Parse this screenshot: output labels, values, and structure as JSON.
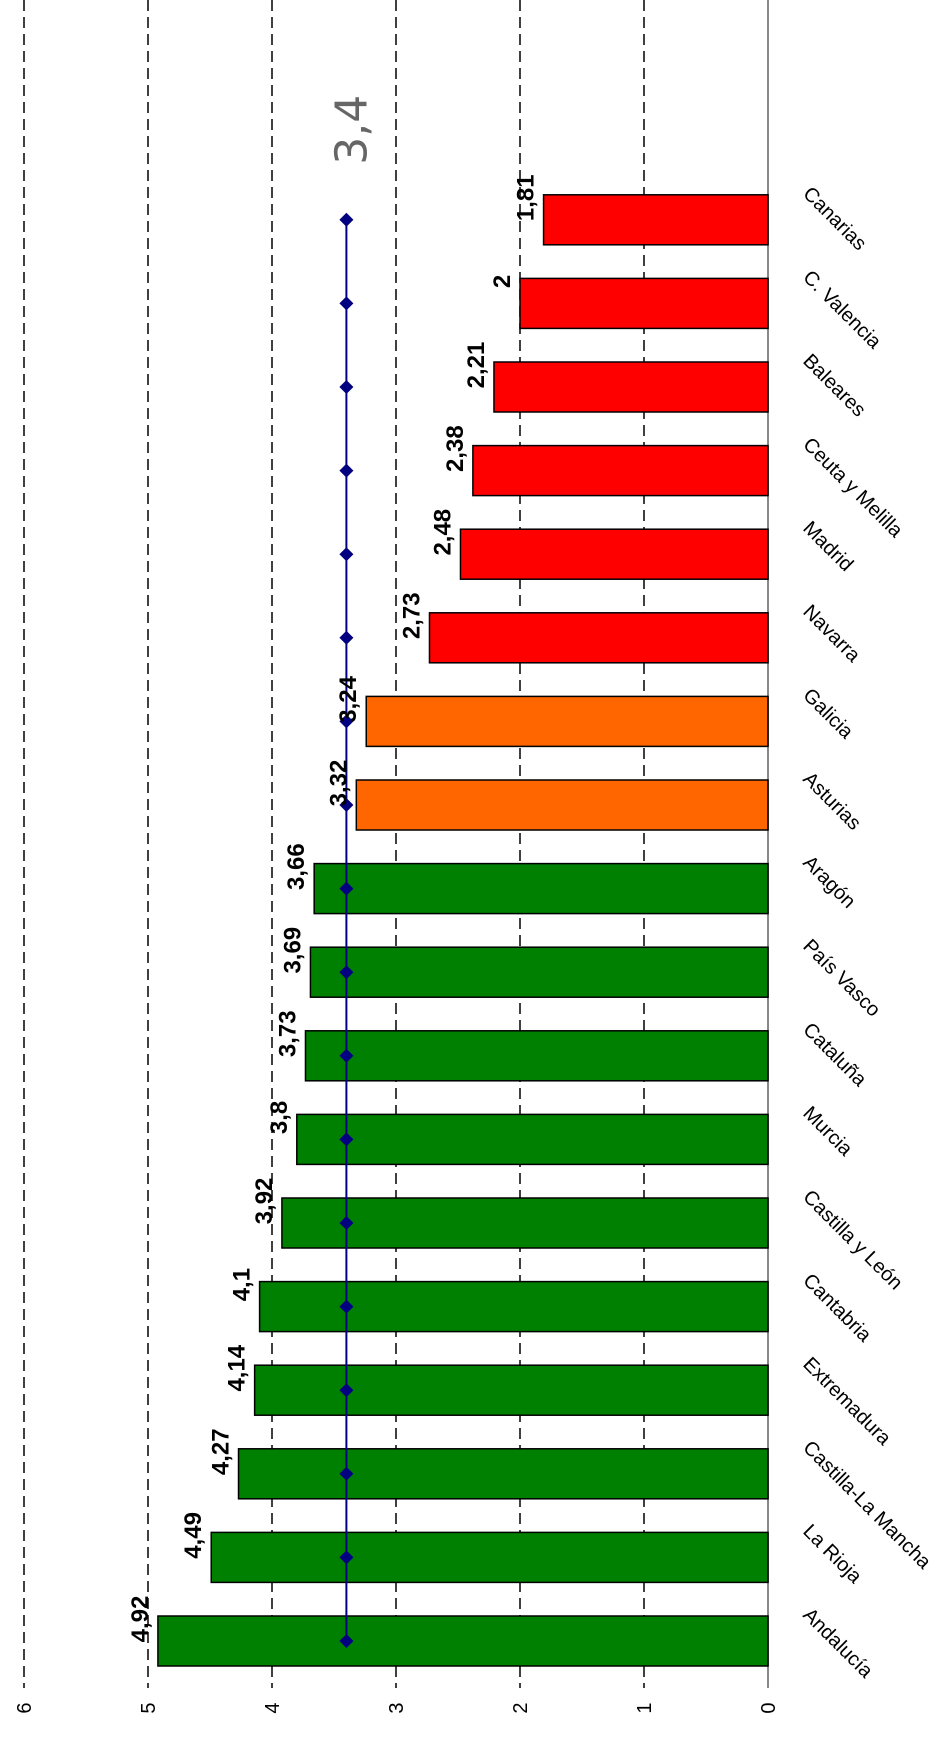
{
  "chart_data": {
    "type": "bar",
    "orientation": "rotated",
    "categories": [
      "Andalucía",
      "La Rioja",
      "Castilla-La Mancha",
      "Extremadura",
      "Cantabria",
      "Castilla y León",
      "Murcia",
      "Cataluña",
      "País Vasco",
      "Aragón",
      "Asturias",
      "Galicia",
      "Navarra",
      "Madrid",
      "Ceuta y Melilla",
      "Baleares",
      "C. Valencia",
      "Canarias"
    ],
    "values": [
      4.92,
      4.49,
      4.27,
      4.14,
      4.1,
      3.92,
      3.8,
      3.73,
      3.69,
      3.66,
      3.32,
      3.24,
      2.73,
      2.48,
      2.38,
      2.21,
      2,
      1.81
    ],
    "data_labels": [
      "4,92",
      "4,49",
      "4,27",
      "4,14",
      "4,1",
      "3,92",
      "3,8",
      "3,73",
      "3,69",
      "3,66",
      "3,32",
      "3,24",
      "2,73",
      "2,48",
      "2,38",
      "2,21",
      "2",
      "1,81"
    ],
    "bar_colors": [
      "#008000",
      "#008000",
      "#008000",
      "#008000",
      "#008000",
      "#008000",
      "#008000",
      "#008000",
      "#008000",
      "#008000",
      "#FF6600",
      "#FF6600",
      "#FF0000",
      "#FF0000",
      "#FF0000",
      "#FF0000",
      "#FF0000",
      "#FF0000"
    ],
    "reference_line": {
      "value": 3.4,
      "label": "3,4",
      "color": "#000080"
    },
    "ticks": [
      "0",
      "1",
      "2",
      "3",
      "4",
      "5",
      "6"
    ],
    "ylim": [
      0,
      6
    ],
    "grid": true,
    "title": "",
    "xlabel": "",
    "ylabel": ""
  }
}
